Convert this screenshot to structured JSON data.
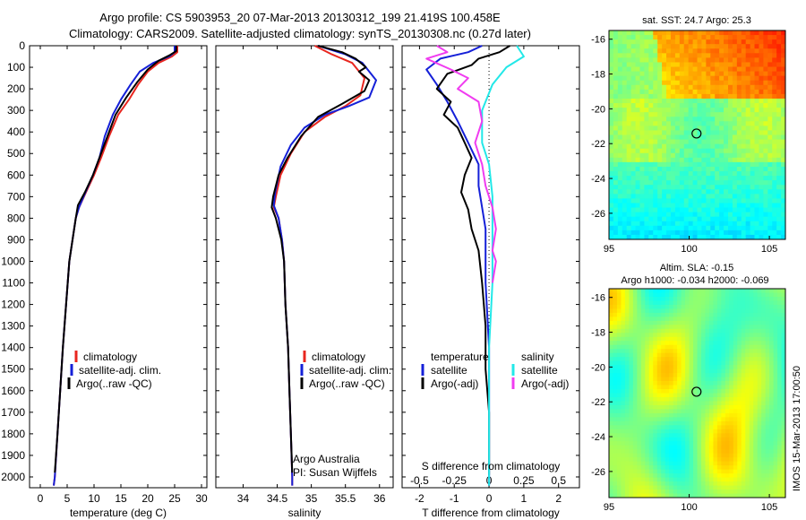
{
  "title": {
    "line1": "Argo profile: CS 5903953_20 07-Mar-2013 20130312_199 21.419S 100.458E",
    "line2": "Climatology: CARS2009. Satellite-adjusted climatology: synTS_20130308.nc (0.27d later)"
  },
  "colors": {
    "climatology": "#e8261f",
    "satellite": "#1520d8",
    "argo": "#000000",
    "s_satellite": "#22e8e8",
    "s_argo": "#f03cf0"
  },
  "chart_data": [
    {
      "type": "line",
      "panel": "temperature",
      "xlabel": "temperature (deg C)",
      "xlim": [
        -2,
        31
      ],
      "xticks": [
        0,
        5,
        10,
        15,
        20,
        25,
        30
      ],
      "ylim": [
        0,
        2050
      ],
      "yticks": [
        0,
        100,
        200,
        300,
        400,
        500,
        600,
        700,
        800,
        900,
        1000,
        1100,
        1200,
        1300,
        1400,
        1500,
        1600,
        1700,
        1800,
        1900,
        2000
      ],
      "legend": [
        "climatology",
        "satellite-adj. clim.",
        "Argo(..raw -QC)"
      ],
      "series": [
        {
          "name": "climatology",
          "color_key": "climatology",
          "points": [
            [
              25.5,
              0
            ],
            [
              25.5,
              30
            ],
            [
              24.5,
              50
            ],
            [
              22,
              80
            ],
            [
              20,
              120
            ],
            [
              18.2,
              180
            ],
            [
              16.5,
              250
            ],
            [
              14.5,
              320
            ],
            [
              12.8,
              420
            ],
            [
              11.3,
              520
            ],
            [
              10,
              600
            ],
            [
              8.5,
              680
            ],
            [
              7.2,
              750
            ],
            [
              6.6,
              800
            ],
            [
              6,
              900
            ],
            [
              5.4,
              1000
            ],
            [
              4.8,
              1200
            ],
            [
              4.2,
              1400
            ],
            [
              3.7,
              1600
            ],
            [
              3.2,
              1800
            ],
            [
              2.7,
              2000
            ],
            [
              2.5,
              2040
            ]
          ]
        },
        {
          "name": "satellite-adj. clim.",
          "color_key": "satellite",
          "points": [
            [
              25,
              0
            ],
            [
              25,
              30
            ],
            [
              24,
              50
            ],
            [
              21,
              80
            ],
            [
              18.5,
              120
            ],
            [
              16.8,
              180
            ],
            [
              15,
              250
            ],
            [
              13.5,
              320
            ],
            [
              12,
              420
            ],
            [
              11,
              520
            ],
            [
              9.8,
              600
            ],
            [
              8.4,
              680
            ],
            [
              7.2,
              750
            ],
            [
              6.6,
              800
            ],
            [
              6,
              900
            ],
            [
              5.4,
              1000
            ],
            [
              4.8,
              1200
            ],
            [
              4.2,
              1400
            ],
            [
              3.7,
              1600
            ],
            [
              3.2,
              1800
            ],
            [
              2.7,
              2000
            ],
            [
              2.5,
              2040
            ]
          ]
        },
        {
          "name": "Argo(..raw -QC)",
          "color_key": "argo",
          "points": [
            [
              25.3,
              0
            ],
            [
              25.3,
              25
            ],
            [
              24,
              45
            ],
            [
              22,
              70
            ],
            [
              20,
              110
            ],
            [
              18,
              170
            ],
            [
              16,
              240
            ],
            [
              14,
              320
            ],
            [
              12.5,
              420
            ],
            [
              11,
              520
            ],
            [
              9.8,
              600
            ],
            [
              8.3,
              680
            ],
            [
              7,
              740
            ],
            [
              6.6,
              800
            ],
            [
              6,
              900
            ],
            [
              5.4,
              1000
            ],
            [
              4.8,
              1200
            ],
            [
              4.2,
              1400
            ],
            [
              3.7,
              1600
            ],
            [
              3.2,
              1800
            ],
            [
              2.7,
              1980
            ]
          ]
        }
      ]
    },
    {
      "type": "line",
      "panel": "salinity",
      "xlabel": "salinity",
      "xlim": [
        33.6,
        36.2
      ],
      "xticks": [
        34,
        34.5,
        35,
        35.5,
        36
      ],
      "ylim": [
        0,
        2050
      ],
      "legend": [
        "climatology",
        "satellite-adj. clim.",
        "Argo(..raw -QC)"
      ],
      "annotation": [
        "Argo Australia",
        "PI: Susan Wijffels"
      ],
      "series": [
        {
          "name": "climatology",
          "color_key": "climatology",
          "points": [
            [
              35.05,
              0
            ],
            [
              35.3,
              40
            ],
            [
              35.6,
              80
            ],
            [
              35.78,
              150
            ],
            [
              35.72,
              230
            ],
            [
              35.5,
              280
            ],
            [
              35.2,
              330
            ],
            [
              34.9,
              400
            ],
            [
              34.7,
              500
            ],
            [
              34.55,
              600
            ],
            [
              34.48,
              700
            ],
            [
              34.45,
              750
            ],
            [
              34.52,
              800
            ],
            [
              34.57,
              900
            ],
            [
              34.6,
              1000
            ],
            [
              34.62,
              1200
            ],
            [
              34.66,
              1400
            ],
            [
              34.68,
              1600
            ],
            [
              34.7,
              1800
            ],
            [
              34.72,
              2000
            ],
            [
              34.72,
              2040
            ]
          ]
        },
        {
          "name": "satellite-adj. clim.",
          "color_key": "satellite",
          "points": [
            [
              35.1,
              0
            ],
            [
              35.5,
              40
            ],
            [
              35.75,
              80
            ],
            [
              35.95,
              160
            ],
            [
              35.85,
              240
            ],
            [
              35.55,
              280
            ],
            [
              35.2,
              320
            ],
            [
              34.9,
              380
            ],
            [
              34.7,
              460
            ],
            [
              34.55,
              560
            ],
            [
              34.47,
              680
            ],
            [
              34.45,
              740
            ],
            [
              34.52,
              800
            ],
            [
              34.57,
              900
            ],
            [
              34.6,
              1000
            ],
            [
              34.62,
              1200
            ],
            [
              34.66,
              1400
            ],
            [
              34.68,
              1600
            ],
            [
              34.7,
              1800
            ],
            [
              34.72,
              2000
            ],
            [
              34.72,
              2040
            ]
          ]
        },
        {
          "name": "Argo(..raw -QC)",
          "color_key": "argo",
          "points": [
            [
              35.1,
              0
            ],
            [
              35.45,
              30
            ],
            [
              35.65,
              60
            ],
            [
              35.8,
              100
            ],
            [
              35.7,
              120
            ],
            [
              35.85,
              160
            ],
            [
              35.78,
              210
            ],
            [
              35.45,
              270
            ],
            [
              35.1,
              330
            ],
            [
              34.85,
              420
            ],
            [
              34.65,
              520
            ],
            [
              34.52,
              600
            ],
            [
              34.44,
              700
            ],
            [
              34.42,
              750
            ],
            [
              34.48,
              800
            ],
            [
              34.56,
              900
            ],
            [
              34.6,
              1000
            ],
            [
              34.62,
              1200
            ],
            [
              34.66,
              1400
            ],
            [
              34.68,
              1600
            ],
            [
              34.7,
              1800
            ],
            [
              34.72,
              1980
            ]
          ]
        }
      ]
    },
    {
      "type": "line",
      "panel": "difference",
      "xlabel": "T difference from climatology",
      "xlabel_top": "S difference from climatology",
      "xlim": [
        -2.5,
        2.6
      ],
      "xticks": [
        -2,
        -1,
        0,
        1,
        2
      ],
      "xticks_s_positions": [
        -2,
        -1,
        0,
        1,
        2
      ],
      "xticks_s_labels": [
        "-0.5",
        "-0.25",
        "0",
        "0.25",
        "0.5"
      ],
      "legend_t": [
        "temperature",
        "satellite",
        "Argo(-adj)"
      ],
      "legend_s": [
        "salinity",
        "satellite",
        "Argo(-adj)"
      ],
      "series": [
        {
          "name": "T satellite",
          "color_key": "satellite",
          "points": [
            [
              -0.2,
              0
            ],
            [
              -0.6,
              30
            ],
            [
              -1.4,
              60
            ],
            [
              -1.8,
              110
            ],
            [
              -1.5,
              180
            ],
            [
              -1.2,
              260
            ],
            [
              -0.9,
              350
            ],
            [
              -0.6,
              450
            ],
            [
              -0.3,
              550
            ],
            [
              -0.3,
              650
            ],
            [
              -0.2,
              750
            ],
            [
              -0.1,
              850
            ],
            [
              -0.1,
              950
            ],
            [
              -0.1,
              1100
            ],
            [
              0,
              1400
            ],
            [
              0,
              1700
            ],
            [
              0,
              2000
            ],
            [
              0,
              2040
            ]
          ]
        },
        {
          "name": "T Argo(-adj)",
          "color_key": "argo",
          "points": [
            [
              0.6,
              0
            ],
            [
              0.3,
              30
            ],
            [
              -0.3,
              60
            ],
            [
              -0.5,
              90
            ],
            [
              -1.2,
              130
            ],
            [
              -1.5,
              200
            ],
            [
              -1.1,
              260
            ],
            [
              -1.3,
              320
            ],
            [
              -0.9,
              380
            ],
            [
              -0.7,
              450
            ],
            [
              -0.5,
              520
            ],
            [
              -0.7,
              600
            ],
            [
              -0.8,
              680
            ],
            [
              -0.6,
              760
            ],
            [
              -0.5,
              850
            ],
            [
              -0.3,
              950
            ],
            [
              -0.2,
              1100
            ],
            [
              -0.1,
              1300
            ],
            [
              -0.1,
              1500
            ],
            [
              0,
              1700
            ],
            [
              0,
              1900
            ],
            [
              0,
              1990
            ]
          ]
        },
        {
          "name": "S satellite",
          "color_key": "s_satellite",
          "points": [
            [
              0.8,
              0
            ],
            [
              1.0,
              50
            ],
            [
              0.5,
              100
            ],
            [
              0.1,
              180
            ],
            [
              -0.2,
              300
            ],
            [
              -0.2,
              450
            ],
            [
              0,
              550
            ],
            [
              0.1,
              700
            ],
            [
              0.1,
              900
            ],
            [
              0.1,
              1100
            ],
            [
              0,
              1400
            ],
            [
              0,
              1700
            ],
            [
              0,
              2000
            ],
            [
              0,
              2040
            ]
          ]
        },
        {
          "name": "S Argo(-adj)",
          "color_key": "s_argo",
          "points": [
            [
              -1.5,
              0
            ],
            [
              -1.2,
              30
            ],
            [
              -1.8,
              60
            ],
            [
              -1.1,
              110
            ],
            [
              -0.6,
              150
            ],
            [
              -0.9,
              200
            ],
            [
              -0.3,
              260
            ],
            [
              -0.2,
              350
            ],
            [
              -0.4,
              450
            ],
            [
              -0.2,
              550
            ],
            [
              -0.1,
              650
            ],
            [
              0.1,
              750
            ],
            [
              0.2,
              850
            ],
            [
              0.1,
              950
            ],
            [
              0.2,
              1000
            ],
            [
              0.1,
              1100
            ]
          ]
        }
      ]
    },
    {
      "type": "heatmap",
      "panel": "sst_map",
      "title": "sat. SST: 24.7  Argo: 25.3",
      "xlim": [
        95,
        106
      ],
      "ylim": [
        -27.5,
        -15.5
      ],
      "xticks": [
        95,
        100,
        105
      ],
      "yticks": [
        -16,
        -18,
        -20,
        -22,
        -24,
        -26
      ],
      "marker": {
        "lon": 100.458,
        "lat": -21.419
      }
    },
    {
      "type": "heatmap",
      "panel": "sla_map",
      "title": "Altim. SLA: -0.15",
      "subtitle": "Argo h1000: -0.034  h2000: -0.069",
      "xlim": [
        95,
        106
      ],
      "ylim": [
        -27.5,
        -15.5
      ],
      "xticks": [
        95,
        100,
        105
      ],
      "yticks": [
        -16,
        -18,
        -20,
        -22,
        -24,
        -26
      ],
      "marker": {
        "lon": 100.458,
        "lat": -21.419
      }
    }
  ],
  "footer": "IMOS 15-Mar-2013 17:00:50"
}
